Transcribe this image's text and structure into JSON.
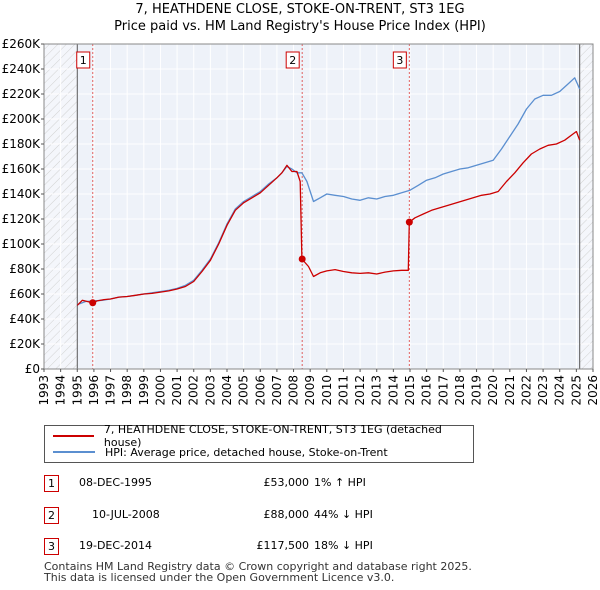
{
  "chart_data": {
    "type": "line",
    "title": "7, HEATHDENE CLOSE, STOKE-ON-TRENT, ST3 1EG",
    "subtitle": "Price paid vs. HM Land Registry's House Price Index (HPI)",
    "xlim": [
      1993,
      2026
    ],
    "ylim": [
      0,
      260000
    ],
    "x_ticks": [
      "1993",
      "1994",
      "1995",
      "1996",
      "1997",
      "1998",
      "1999",
      "2000",
      "2001",
      "2002",
      "2003",
      "2004",
      "2005",
      "2006",
      "2007",
      "2008",
      "2009",
      "2010",
      "2011",
      "2012",
      "2013",
      "2014",
      "2015",
      "2016",
      "2017",
      "2018",
      "2019",
      "2020",
      "2021",
      "2022",
      "2023",
      "2024",
      "2025",
      "2026"
    ],
    "y_ticks": [
      {
        "value": 0,
        "label": "£0"
      },
      {
        "value": 20000,
        "label": "£20K"
      },
      {
        "value": 40000,
        "label": "£40K"
      },
      {
        "value": 60000,
        "label": "£60K"
      },
      {
        "value": 80000,
        "label": "£80K"
      },
      {
        "value": 100000,
        "label": "£100K"
      },
      {
        "value": 120000,
        "label": "£120K"
      },
      {
        "value": 140000,
        "label": "£140K"
      },
      {
        "value": 160000,
        "label": "£160K"
      },
      {
        "value": 180000,
        "label": "£180K"
      },
      {
        "value": 200000,
        "label": "£200K"
      },
      {
        "value": 220000,
        "label": "£220K"
      },
      {
        "value": 240000,
        "label": "£240K"
      },
      {
        "value": 260000,
        "label": "£260K"
      }
    ],
    "hatched_ranges": [
      [
        1993,
        1995.0
      ],
      [
        2025.2,
        2026
      ]
    ],
    "series": [
      {
        "name": "7, HEATHDENE CLOSE, STOKE-ON-TRENT, ST3 1EG (detached house)",
        "color": "#cc0000",
        "points": [
          [
            1995.0,
            51000
          ],
          [
            1995.3,
            55000
          ],
          [
            1995.6,
            54000
          ],
          [
            1995.93,
            53000
          ],
          [
            1996.2,
            54500
          ],
          [
            1996.6,
            55500
          ],
          [
            1997.0,
            56000
          ],
          [
            1997.5,
            57500
          ],
          [
            1998.0,
            58000
          ],
          [
            1998.5,
            59000
          ],
          [
            1999.0,
            60000
          ],
          [
            1999.5,
            60500
          ],
          [
            2000.0,
            61500
          ],
          [
            2000.5,
            62500
          ],
          [
            2001.0,
            64000
          ],
          [
            2001.5,
            66000
          ],
          [
            2002.0,
            70000
          ],
          [
            2002.5,
            78000
          ],
          [
            2003.0,
            87000
          ],
          [
            2003.5,
            100000
          ],
          [
            2004.0,
            115000
          ],
          [
            2004.5,
            127000
          ],
          [
            2005.0,
            133000
          ],
          [
            2005.5,
            137000
          ],
          [
            2006.0,
            141000
          ],
          [
            2006.5,
            147000
          ],
          [
            2007.0,
            153000
          ],
          [
            2007.3,
            157000
          ],
          [
            2007.6,
            163000
          ],
          [
            2007.9,
            158000
          ],
          [
            2008.2,
            158000
          ],
          [
            2008.4,
            150000
          ],
          [
            2008.5,
            88000
          ],
          [
            2008.9,
            82000
          ],
          [
            2009.2,
            74000
          ],
          [
            2009.6,
            77000
          ],
          [
            2010.0,
            78500
          ],
          [
            2010.5,
            79500
          ],
          [
            2011.0,
            78000
          ],
          [
            2011.5,
            77000
          ],
          [
            2012.0,
            76500
          ],
          [
            2012.5,
            77000
          ],
          [
            2013.0,
            76000
          ],
          [
            2013.5,
            77500
          ],
          [
            2014.0,
            78500
          ],
          [
            2014.5,
            79000
          ],
          [
            2014.9,
            79000
          ],
          [
            2014.96,
            117500
          ],
          [
            2015.3,
            121000
          ],
          [
            2015.8,
            124000
          ],
          [
            2016.3,
            127000
          ],
          [
            2016.8,
            129000
          ],
          [
            2017.3,
            131000
          ],
          [
            2017.8,
            133000
          ],
          [
            2018.3,
            135000
          ],
          [
            2018.8,
            137000
          ],
          [
            2019.3,
            139000
          ],
          [
            2019.8,
            140000
          ],
          [
            2020.3,
            142000
          ],
          [
            2020.8,
            150000
          ],
          [
            2021.3,
            157000
          ],
          [
            2021.8,
            165000
          ],
          [
            2022.3,
            172000
          ],
          [
            2022.8,
            176000
          ],
          [
            2023.3,
            179000
          ],
          [
            2023.8,
            180000
          ],
          [
            2024.3,
            183000
          ],
          [
            2024.8,
            188000
          ],
          [
            2025.0,
            190000
          ],
          [
            2025.2,
            183000
          ]
        ]
      },
      {
        "name": "HPI: Average price, detached house, Stoke-on-Trent",
        "color": "#5b8fd0",
        "points": [
          [
            1995.0,
            51500
          ],
          [
            1995.5,
            54000
          ],
          [
            1996.0,
            54500
          ],
          [
            1996.5,
            55000
          ],
          [
            1997.0,
            56000
          ],
          [
            1997.5,
            57500
          ],
          [
            1998.0,
            58000
          ],
          [
            1998.5,
            59000
          ],
          [
            1999.0,
            60000
          ],
          [
            1999.5,
            61000
          ],
          [
            2000.0,
            62000
          ],
          [
            2000.5,
            63000
          ],
          [
            2001.0,
            64500
          ],
          [
            2001.5,
            67000
          ],
          [
            2002.0,
            71000
          ],
          [
            2002.5,
            79000
          ],
          [
            2003.0,
            88000
          ],
          [
            2003.5,
            101000
          ],
          [
            2004.0,
            116000
          ],
          [
            2004.5,
            128000
          ],
          [
            2005.0,
            134000
          ],
          [
            2005.5,
            138000
          ],
          [
            2006.0,
            142000
          ],
          [
            2006.5,
            148000
          ],
          [
            2007.0,
            153000
          ],
          [
            2007.3,
            157000
          ],
          [
            2007.6,
            162000
          ],
          [
            2007.9,
            160000
          ],
          [
            2008.2,
            157000
          ],
          [
            2008.5,
            157000
          ],
          [
            2008.8,
            150000
          ],
          [
            2009.2,
            134000
          ],
          [
            2009.6,
            137000
          ],
          [
            2010.0,
            140000
          ],
          [
            2010.5,
            139000
          ],
          [
            2011.0,
            138000
          ],
          [
            2011.5,
            136000
          ],
          [
            2012.0,
            135000
          ],
          [
            2012.5,
            137000
          ],
          [
            2013.0,
            136000
          ],
          [
            2013.5,
            138000
          ],
          [
            2014.0,
            139000
          ],
          [
            2014.5,
            141000
          ],
          [
            2015.0,
            143000
          ],
          [
            2015.5,
            147000
          ],
          [
            2016.0,
            151000
          ],
          [
            2016.5,
            153000
          ],
          [
            2017.0,
            156000
          ],
          [
            2017.5,
            158000
          ],
          [
            2018.0,
            160000
          ],
          [
            2018.5,
            161000
          ],
          [
            2019.0,
            163000
          ],
          [
            2019.5,
            165000
          ],
          [
            2020.0,
            167000
          ],
          [
            2020.5,
            176000
          ],
          [
            2021.0,
            186000
          ],
          [
            2021.5,
            196000
          ],
          [
            2022.0,
            208000
          ],
          [
            2022.5,
            216000
          ],
          [
            2023.0,
            219000
          ],
          [
            2023.5,
            219000
          ],
          [
            2024.0,
            222000
          ],
          [
            2024.5,
            228000
          ],
          [
            2024.9,
            233000
          ],
          [
            2025.2,
            224000
          ]
        ]
      }
    ],
    "sales": [
      {
        "id": "1",
        "x": 1995.93,
        "value": 53000
      },
      {
        "id": "2",
        "x": 2008.52,
        "value": 88000
      },
      {
        "id": "3",
        "x": 2014.96,
        "value": 117500
      }
    ]
  },
  "title_line1": "7, HEATHDENE CLOSE, STOKE-ON-TRENT, ST3 1EG",
  "title_line2": "Price paid vs. HM Land Registry's House Price Index (HPI)",
  "legend": {
    "property_label": "7, HEATHDENE CLOSE, STOKE-ON-TRENT, ST3 1EG (detached house)",
    "hpi_label": "HPI: Average price, detached house, Stoke-on-Trent",
    "property_color": "#cc0000",
    "hpi_color": "#5b8fd0"
  },
  "transactions": [
    {
      "num": "1",
      "date": "08-DEC-1995",
      "price": "£53,000",
      "hpi": "1% ↑ HPI"
    },
    {
      "num": "2",
      "date": "10-JUL-2008",
      "price": "£88,000",
      "hpi": "44% ↓ HPI"
    },
    {
      "num": "3",
      "date": "19-DEC-2014",
      "price": "£117,500",
      "hpi": "18% ↓ HPI"
    }
  ],
  "footer": {
    "line1": "Contains HM Land Registry data © Crown copyright and database right 2025.",
    "line2": "This data is licensed under the Open Government Licence v3.0."
  }
}
